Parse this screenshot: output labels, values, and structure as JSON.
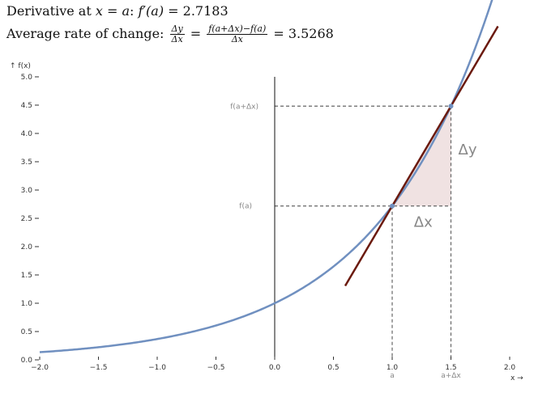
{
  "header": {
    "derivative_text": "Derivative at ",
    "derivative_var": "x",
    "derivative_eq": " = ",
    "derivative_a": "a",
    "derivative_colon": ": ",
    "derivative_expr": "f′(a)",
    "derivative_value": " = 2.7183",
    "avg_text": "Average rate of change: ",
    "avg_frac1_num": "Δy",
    "avg_frac1_den": "Δx",
    "avg_eq1": " = ",
    "avg_frac2_num": "f(a+Δx)−f(a)",
    "avg_frac2_den": "Δx",
    "avg_value": " = 3.5268"
  },
  "chart_data": {
    "type": "line",
    "xlabel": "x →",
    "ylabel": "↑ f(x)",
    "xlim": [
      -2.0,
      2.0
    ],
    "ylim": [
      0.0,
      5.0
    ],
    "x_ticks": [
      "−2.0",
      "−1.5",
      "−1.0",
      "−0.5",
      "0.0",
      "0.5",
      "1.0",
      "1.5",
      "2.0"
    ],
    "x_tick_values": [
      -2.0,
      -1.5,
      -1.0,
      -0.5,
      0.0,
      0.5,
      1.0,
      1.5,
      2.0
    ],
    "y_ticks": [
      "0.0",
      "0.5",
      "1.0",
      "1.5",
      "2.0",
      "2.5",
      "3.0",
      "3.5",
      "4.0",
      "4.5",
      "5.0"
    ],
    "y_tick_values": [
      0.0,
      0.5,
      1.0,
      1.5,
      2.0,
      2.5,
      3.0,
      3.5,
      4.0,
      4.5,
      5.0
    ],
    "function": "exp(x)",
    "curve_color": "#7090c0",
    "a": 1.0,
    "dx": 0.5,
    "f_a": 2.7183,
    "f_a_dx": 4.4817,
    "derivative": 2.7183,
    "avg_rate": 3.5268,
    "secant_x_range": [
      0.6,
      1.9
    ],
    "secant_color": "#6b1a0e",
    "triangle_color": "#f0e2e2",
    "guide_labels": {
      "fa": "f(a)",
      "fadx": "f(a+Δx)",
      "a": "a",
      "adx": "a+Δx"
    },
    "delta_labels": {
      "dx": "Δx",
      "dy": "Δy"
    }
  }
}
